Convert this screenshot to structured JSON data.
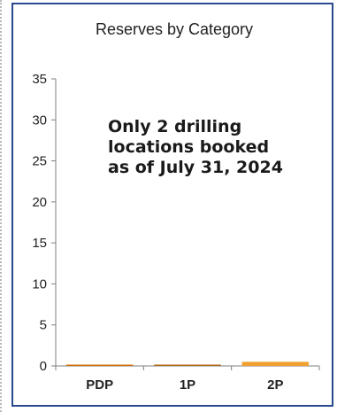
{
  "chart_data": {
    "type": "bar",
    "title": "Reserves by Category",
    "categories": [
      "PDP",
      "1P",
      "2P"
    ],
    "series": [
      {
        "values": [
          0,
          0,
          0.5
        ]
      }
    ],
    "xlabel": "",
    "ylabel": "",
    "ylim": [
      0,
      35
    ],
    "yticks": [
      "0",
      "5",
      "10",
      "15",
      "20",
      "25",
      "30",
      "35"
    ],
    "grid": false,
    "bar_colors": [
      "#d4700a",
      "#b06a1a",
      "#f0a030"
    ],
    "annotation": "Only 2 drilling locations booked as of July 31, 2024"
  },
  "colors": {
    "frame": "#2a4a8f",
    "axis": "#7f7f7f",
    "text": "#222222"
  }
}
